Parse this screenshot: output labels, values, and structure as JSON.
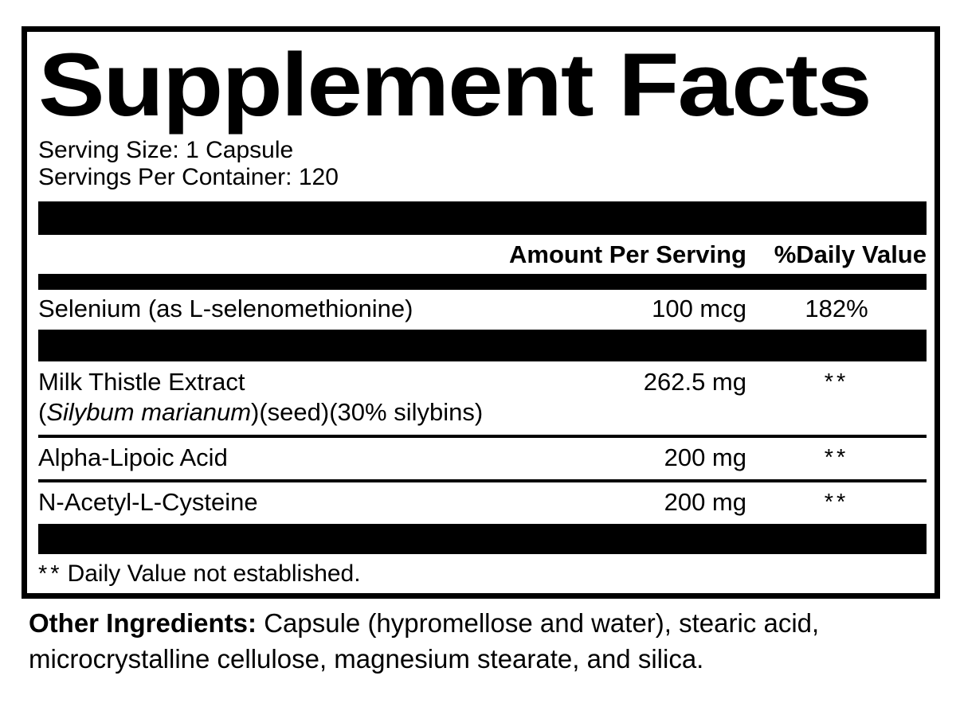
{
  "panel": {
    "title": "Supplement Facts",
    "serving_size_line": "Serving Size: 1 Capsule",
    "servings_per_container_line": "Servings Per Container: 120",
    "columns": {
      "amount_header": "Amount Per Serving",
      "dv_header": "%Daily Value"
    },
    "rows": [
      {
        "name": "Selenium (as L-selenomethionine)",
        "amount": "100 mcg",
        "daily_value": "182%"
      },
      {
        "name_line1": "Milk Thistle Extract",
        "name_line2_prefix": "(",
        "name_line2_italic": "Silybum marianum",
        "name_line2_suffix": ")(seed)(30% silybins)",
        "amount": "262.5 mg",
        "daily_value": "**"
      },
      {
        "name": "Alpha-Lipoic Acid",
        "amount": "200 mg",
        "daily_value": "**"
      },
      {
        "name": "N-Acetyl-L-Cysteine",
        "amount": "200 mg",
        "daily_value": "**"
      }
    ],
    "footnote_marker": "**",
    "footnote_text": "Daily Value not established."
  },
  "other_ingredients": {
    "label": "Other Ingredients:",
    "text": "Capsule (hypromellose and water), stearic acid, microcrystalline cellulose, magnesium stearate, and silica."
  },
  "colors": {
    "foreground": "#000000",
    "background": "#ffffff"
  }
}
